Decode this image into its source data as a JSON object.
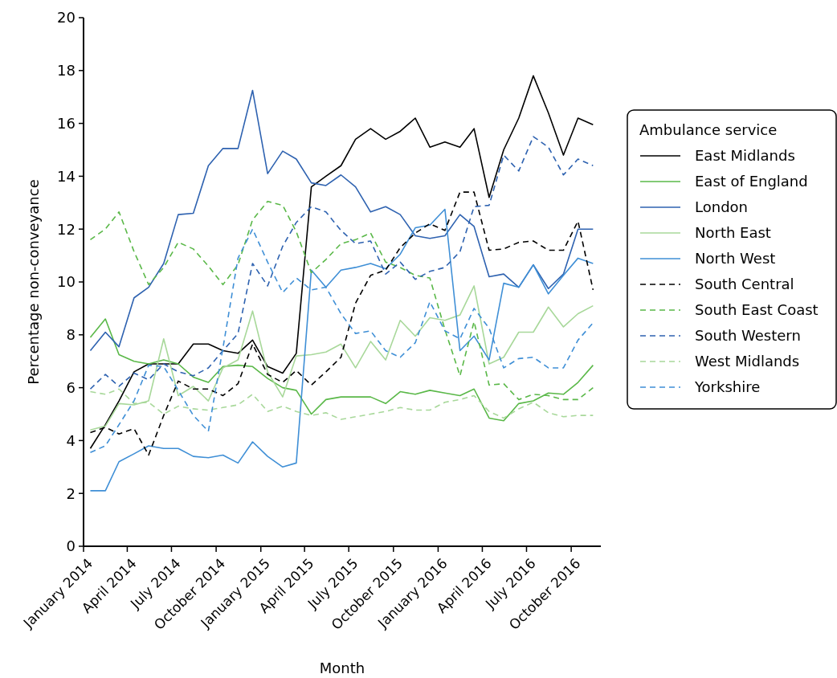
{
  "chart_data": {
    "type": "line",
    "xlabel": "Month",
    "ylabel": "Percentage non-conveyance",
    "legend_title": "Ambulance service",
    "legend": "right",
    "grid": false,
    "x": [
      "2014-01-15",
      "2014-02-15",
      "2014-03-15",
      "2014-04-15",
      "2014-05-15",
      "2014-06-15",
      "2014-07-15",
      "2014-08-15",
      "2014-09-15",
      "2014-10-15",
      "2014-11-15",
      "2014-12-15",
      "2015-01-15",
      "2015-02-15",
      "2015-03-15",
      "2015-04-15",
      "2015-05-15",
      "2015-06-15",
      "2015-07-15",
      "2015-08-15",
      "2015-09-15",
      "2015-10-15",
      "2015-11-15",
      "2015-12-15",
      "2016-01-15",
      "2016-02-15",
      "2016-03-15",
      "2016-04-15",
      "2016-05-15",
      "2016-06-15",
      "2016-07-15",
      "2016-08-15",
      "2016-09-15",
      "2016-10-15",
      "2016-11-15"
    ],
    "xlim": [
      "2014-01-01",
      "2016-12-01"
    ],
    "xticks": [
      {
        "value": "2014-01-01",
        "label": "January 2014"
      },
      {
        "value": "2014-04-01",
        "label": "April 2014"
      },
      {
        "value": "2014-07-01",
        "label": "July 2014"
      },
      {
        "value": "2014-10-01",
        "label": "October 2014"
      },
      {
        "value": "2015-01-01",
        "label": "January 2015"
      },
      {
        "value": "2015-04-01",
        "label": "April 2015"
      },
      {
        "value": "2015-07-01",
        "label": "July 2015"
      },
      {
        "value": "2015-10-01",
        "label": "October 2015"
      },
      {
        "value": "2016-01-01",
        "label": "January 2016"
      },
      {
        "value": "2016-04-01",
        "label": "April 2016"
      },
      {
        "value": "2016-07-01",
        "label": "July 2016"
      },
      {
        "value": "2016-10-01",
        "label": "October 2016"
      }
    ],
    "ylim": [
      0,
      20
    ],
    "yticks": [
      0,
      2,
      4,
      6,
      8,
      10,
      12,
      14,
      16,
      18,
      20
    ],
    "series": [
      {
        "name": "East Midlands",
        "color": "#000000",
        "line_style": "solid",
        "values": [
          3.7,
          4.6,
          5.5,
          6.6,
          6.9,
          6.9,
          6.9,
          7.65,
          7.65,
          7.4,
          7.3,
          7.8,
          6.8,
          6.55,
          7.3,
          13.6,
          14.0,
          14.4,
          15.4,
          15.8,
          15.4,
          15.7,
          16.2,
          15.1,
          15.3,
          15.1,
          15.8,
          13.2,
          15.0,
          16.2,
          17.8,
          16.4,
          14.8,
          16.2,
          15.95
        ]
      },
      {
        "name": "East of England",
        "color": "#5ab848",
        "line_style": "solid",
        "values": [
          7.9,
          8.6,
          7.25,
          7.0,
          6.9,
          7.05,
          6.9,
          6.4,
          6.2,
          6.8,
          6.85,
          6.8,
          6.35,
          6.0,
          5.9,
          5.0,
          5.55,
          5.65,
          5.65,
          5.65,
          5.4,
          5.85,
          5.75,
          5.9,
          5.8,
          5.7,
          5.95,
          4.85,
          4.75,
          5.4,
          5.5,
          5.8,
          5.75,
          6.2,
          6.85
        ]
      },
      {
        "name": "London",
        "color": "#2e62b0",
        "line_style": "solid",
        "values": [
          7.4,
          8.1,
          7.55,
          9.4,
          9.8,
          10.7,
          12.55,
          12.6,
          14.4,
          15.05,
          15.05,
          17.25,
          14.1,
          14.95,
          14.65,
          13.75,
          13.65,
          14.05,
          13.6,
          12.65,
          12.85,
          12.55,
          11.75,
          11.65,
          11.75,
          12.55,
          12.1,
          10.2,
          10.3,
          9.8,
          10.65,
          9.75,
          10.3,
          12.0,
          12.0
        ]
      },
      {
        "name": "North East",
        "color": "#a8d89a",
        "line_style": "solid",
        "values": [
          4.4,
          4.55,
          5.4,
          5.35,
          5.5,
          7.85,
          5.7,
          6.05,
          5.5,
          6.75,
          7.05,
          8.9,
          6.6,
          5.65,
          7.2,
          7.25,
          7.35,
          7.65,
          6.75,
          7.75,
          7.05,
          8.55,
          7.95,
          8.65,
          8.55,
          8.75,
          9.85,
          6.9,
          7.15,
          8.1,
          8.1,
          9.05,
          8.3,
          8.8,
          9.1
        ]
      },
      {
        "name": "North West",
        "color": "#3f8fd6",
        "line_style": "solid",
        "values": [
          2.1,
          2.1,
          3.2,
          3.5,
          3.8,
          3.7,
          3.7,
          3.4,
          3.35,
          3.45,
          3.15,
          3.95,
          3.4,
          3.0,
          3.15,
          10.45,
          9.8,
          10.45,
          10.55,
          10.7,
          10.5,
          11.05,
          12.05,
          12.15,
          12.75,
          7.4,
          7.95,
          7.05,
          9.95,
          9.8,
          10.65,
          9.55,
          10.25,
          10.9,
          10.7
        ]
      },
      {
        "name": "South Central",
        "color": "#000000",
        "line_style": "dashed",
        "values": [
          4.3,
          4.5,
          4.25,
          4.45,
          3.45,
          4.95,
          6.25,
          5.95,
          5.95,
          5.7,
          6.15,
          7.65,
          6.5,
          6.2,
          6.65,
          6.1,
          6.6,
          7.15,
          9.2,
          10.25,
          10.45,
          11.3,
          11.85,
          12.2,
          11.95,
          13.4,
          13.4,
          11.2,
          11.25,
          11.5,
          11.55,
          11.2,
          11.2,
          12.3,
          9.7
        ]
      },
      {
        "name": "South East Coast",
        "color": "#5ab848",
        "line_style": "dashed",
        "values": [
          11.6,
          12.0,
          12.65,
          11.15,
          9.9,
          10.55,
          11.5,
          11.25,
          10.6,
          9.9,
          10.65,
          12.35,
          13.05,
          12.9,
          11.9,
          10.35,
          10.85,
          11.45,
          11.6,
          11.85,
          10.75,
          10.55,
          10.25,
          10.15,
          8.2,
          6.45,
          8.5,
          6.1,
          6.15,
          5.55,
          5.75,
          5.7,
          5.55,
          5.55,
          6.0
        ]
      },
      {
        "name": "South Western",
        "color": "#2e62b0",
        "line_style": "dashed",
        "values": [
          5.95,
          6.5,
          6.05,
          6.55,
          6.3,
          6.9,
          6.6,
          6.45,
          6.75,
          7.4,
          8.05,
          10.7,
          9.85,
          11.35,
          12.25,
          12.85,
          12.65,
          11.95,
          11.45,
          11.55,
          10.3,
          10.75,
          10.1,
          10.4,
          10.55,
          11.15,
          12.85,
          12.9,
          14.8,
          14.2,
          15.5,
          15.1,
          14.05,
          14.65,
          14.4
        ]
      },
      {
        "name": "West Midlands",
        "color": "#a8d89a",
        "line_style": "dashed",
        "values": [
          5.85,
          5.75,
          5.95,
          5.4,
          5.45,
          5.0,
          5.3,
          5.2,
          5.15,
          5.25,
          5.35,
          5.75,
          5.1,
          5.3,
          5.1,
          4.95,
          5.05,
          4.8,
          4.9,
          5.0,
          5.1,
          5.25,
          5.15,
          5.15,
          5.45,
          5.55,
          5.7,
          5.1,
          4.85,
          5.2,
          5.45,
          5.05,
          4.9,
          4.95,
          4.95
        ]
      },
      {
        "name": "Yorkshire",
        "color": "#3f8fd6",
        "line_style": "dashed",
        "values": [
          3.55,
          3.8,
          4.6,
          5.5,
          6.85,
          6.8,
          5.9,
          4.95,
          4.35,
          7.5,
          10.9,
          12.0,
          10.75,
          9.6,
          10.15,
          9.7,
          9.8,
          8.8,
          8.05,
          8.15,
          7.4,
          7.15,
          7.7,
          9.25,
          8.15,
          7.85,
          9.0,
          8.25,
          6.75,
          7.1,
          7.15,
          6.75,
          6.75,
          7.8,
          8.45
        ]
      }
    ]
  }
}
